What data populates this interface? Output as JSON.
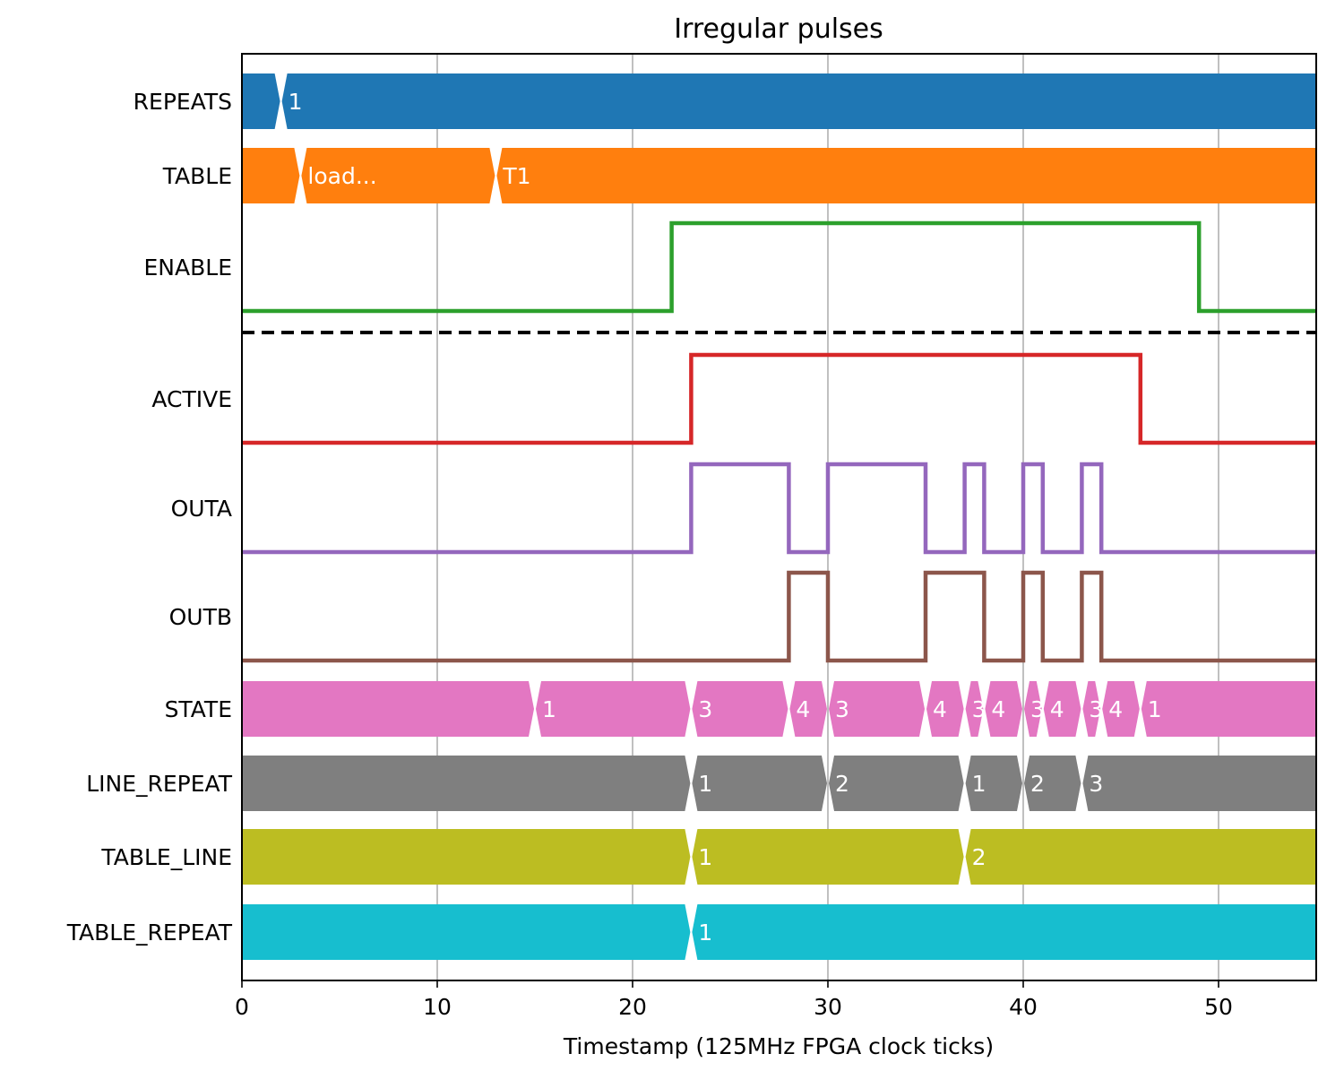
{
  "chart_data": {
    "type": "timing",
    "title": "Irregular pulses",
    "xlabel": "Timestamp (125MHz FPGA clock ticks)",
    "xlim": [
      0,
      55
    ],
    "xticks": [
      0,
      10,
      20,
      30,
      40,
      50
    ],
    "grid": "vertical",
    "separator_after": "ENABLE",
    "signals": [
      {
        "name": "REPEATS",
        "kind": "bus",
        "color": "#1f77b4",
        "segments": [
          {
            "start": 0,
            "end": 2,
            "label": ""
          },
          {
            "start": 2,
            "end": 55,
            "label": "1"
          }
        ]
      },
      {
        "name": "TABLE",
        "kind": "bus",
        "color": "#ff7f0e",
        "segments": [
          {
            "start": 0,
            "end": 3,
            "label": ""
          },
          {
            "start": 3,
            "end": 13,
            "label": "load..."
          },
          {
            "start": 13,
            "end": 55,
            "label": "T1"
          }
        ]
      },
      {
        "name": "ENABLE",
        "kind": "bit",
        "color": "#2ca02c",
        "points": [
          [
            0,
            0
          ],
          [
            22,
            1
          ],
          [
            49,
            0
          ],
          [
            55,
            0
          ]
        ]
      },
      {
        "name": "ACTIVE",
        "kind": "bit",
        "color": "#d62728",
        "points": [
          [
            0,
            0
          ],
          [
            23,
            1
          ],
          [
            46,
            0
          ],
          [
            55,
            0
          ]
        ]
      },
      {
        "name": "OUTA",
        "kind": "bit",
        "color": "#9467bd",
        "points": [
          [
            0,
            0
          ],
          [
            23,
            1
          ],
          [
            28,
            0
          ],
          [
            30,
            1
          ],
          [
            35,
            0
          ],
          [
            37,
            1
          ],
          [
            38,
            0
          ],
          [
            40,
            1
          ],
          [
            41,
            0
          ],
          [
            43,
            1
          ],
          [
            44,
            0
          ],
          [
            55,
            0
          ]
        ]
      },
      {
        "name": "OUTB",
        "kind": "bit",
        "color": "#8c564b",
        "points": [
          [
            0,
            0
          ],
          [
            28,
            1
          ],
          [
            30,
            0
          ],
          [
            35,
            1
          ],
          [
            38,
            0
          ],
          [
            40,
            1
          ],
          [
            41,
            0
          ],
          [
            43,
            1
          ],
          [
            44,
            0
          ],
          [
            55,
            0
          ]
        ]
      },
      {
        "name": "STATE",
        "kind": "bus",
        "color": "#e377c2",
        "segments": [
          {
            "start": 0,
            "end": 15,
            "label": ""
          },
          {
            "start": 15,
            "end": 23,
            "label": "1"
          },
          {
            "start": 23,
            "end": 28,
            "label": "3"
          },
          {
            "start": 28,
            "end": 30,
            "label": "4"
          },
          {
            "start": 30,
            "end": 35,
            "label": "3"
          },
          {
            "start": 35,
            "end": 37,
            "label": "4"
          },
          {
            "start": 37,
            "end": 38,
            "label": "3"
          },
          {
            "start": 38,
            "end": 40,
            "label": "4"
          },
          {
            "start": 40,
            "end": 41,
            "label": "3"
          },
          {
            "start": 41,
            "end": 43,
            "label": "4"
          },
          {
            "start": 43,
            "end": 44,
            "label": "3"
          },
          {
            "start": 44,
            "end": 46,
            "label": "4"
          },
          {
            "start": 46,
            "end": 55,
            "label": "1"
          }
        ]
      },
      {
        "name": "LINE_REPEAT",
        "kind": "bus",
        "color": "#7f7f7f",
        "segments": [
          {
            "start": 0,
            "end": 23,
            "label": ""
          },
          {
            "start": 23,
            "end": 30,
            "label": "1"
          },
          {
            "start": 30,
            "end": 37,
            "label": "2"
          },
          {
            "start": 37,
            "end": 40,
            "label": "1"
          },
          {
            "start": 40,
            "end": 43,
            "label": "2"
          },
          {
            "start": 43,
            "end": 55,
            "label": "3"
          }
        ]
      },
      {
        "name": "TABLE_LINE",
        "kind": "bus",
        "color": "#bcbd22",
        "segments": [
          {
            "start": 0,
            "end": 23,
            "label": ""
          },
          {
            "start": 23,
            "end": 37,
            "label": "1"
          },
          {
            "start": 37,
            "end": 55,
            "label": "2"
          }
        ]
      },
      {
        "name": "TABLE_REPEAT",
        "kind": "bus",
        "color": "#17becf",
        "segments": [
          {
            "start": 0,
            "end": 23,
            "label": ""
          },
          {
            "start": 23,
            "end": 55,
            "label": "1"
          }
        ]
      }
    ]
  }
}
